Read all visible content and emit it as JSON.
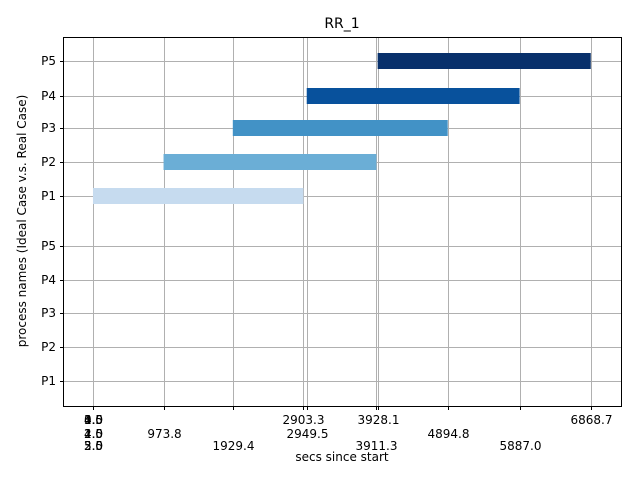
{
  "chart_data": {
    "type": "gantt",
    "title": "RR_1",
    "xlabel": "secs since start",
    "ylabel": "process names (Ideal Case v.s. Real Case)",
    "xlim": [
      -400,
      7300
    ],
    "grid": true,
    "rows": [
      {
        "label": "P5",
        "start": 3928.1,
        "end": 6868.7,
        "color": "#08306b",
        "group": "upper"
      },
      {
        "label": "P4",
        "start": 2949.5,
        "end": 5887.0,
        "color": "#08519c",
        "group": "upper"
      },
      {
        "label": "P3",
        "start": 1929.4,
        "end": 4894.8,
        "color": "#4292c6",
        "group": "upper"
      },
      {
        "label": "P2",
        "start": 973.8,
        "end": 3911.3,
        "color": "#6baed6",
        "group": "upper"
      },
      {
        "label": "P1",
        "start": 0.0,
        "end": 2903.3,
        "color": "#c6dbef",
        "group": "upper"
      },
      {
        "label": "P5",
        "start": null,
        "end": null,
        "group": "lower"
      },
      {
        "label": "P4",
        "start": null,
        "end": null,
        "group": "lower"
      },
      {
        "label": "P3",
        "start": null,
        "end": null,
        "group": "lower"
      },
      {
        "label": "P2",
        "start": null,
        "end": null,
        "group": "lower"
      },
      {
        "label": "P1",
        "start": null,
        "end": null,
        "group": "lower"
      }
    ],
    "xticks": [
      {
        "value": 0,
        "labels": [
          "0.0",
          "1.0",
          "2.0",
          "3.0",
          "4.0",
          "5.0",
          "1.5",
          "2.5",
          "3.5",
          "4.5"
        ]
      },
      {
        "value": 973.8,
        "labels": [
          "973.8"
        ]
      },
      {
        "value": 1929.4,
        "labels": [
          "1929.4"
        ]
      },
      {
        "value": 2903.3,
        "labels": [
          "2903.3"
        ]
      },
      {
        "value": 2949.5,
        "labels": [
          "2949.5"
        ]
      },
      {
        "value": 3911.3,
        "labels": [
          "3911.3"
        ]
      },
      {
        "value": 3928.1,
        "labels": [
          "3928.1"
        ]
      },
      {
        "value": 4894.8,
        "labels": [
          "4894.8"
        ]
      },
      {
        "value": 5887.0,
        "labels": [
          "5887.0"
        ]
      },
      {
        "value": 6868.7,
        "labels": [
          "6868.7"
        ]
      }
    ]
  }
}
